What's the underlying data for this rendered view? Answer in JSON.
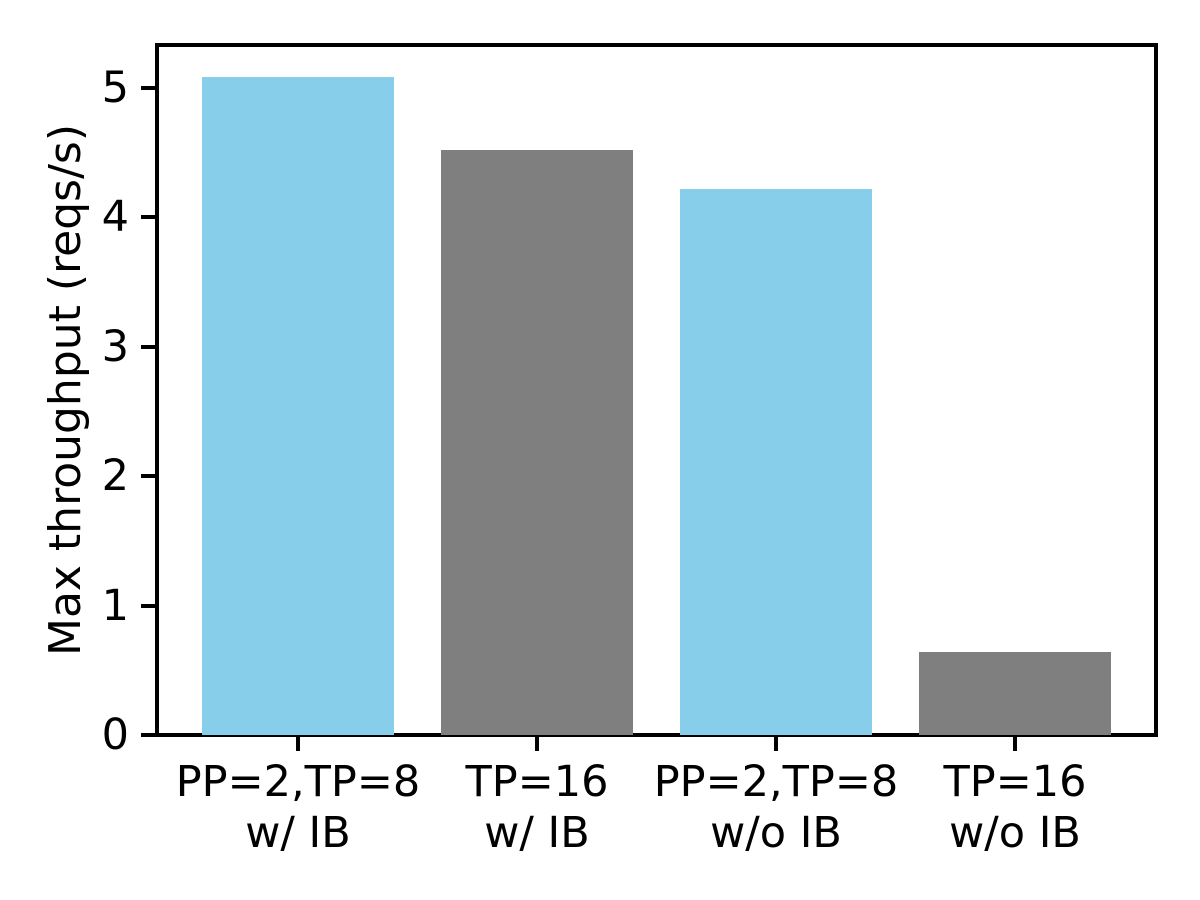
{
  "chart_data": {
    "type": "bar",
    "title": "",
    "xlabel": "",
    "ylabel": "Max throughput (reqs/s)",
    "categories": [
      "PP=2,TP=8\nw/ IB",
      "TP=16\nw/ IB",
      "PP=2,TP=8\nw/o IB",
      "TP=16\nw/o IB"
    ],
    "values": [
      5.08,
      4.52,
      4.22,
      0.64
    ],
    "bar_colors": [
      "#87CEEB",
      "#7F7F7F",
      "#87CEEB",
      "#7F7F7F"
    ],
    "yticks": [
      0,
      1,
      2,
      3,
      4,
      5
    ],
    "ylim": [
      0,
      5.33
    ],
    "xlim": [
      -0.59,
      3.59
    ],
    "bar_width_units": 0.8,
    "grid": false,
    "legend": null
  },
  "colors": {
    "bar_blue": "#87CEEB",
    "bar_gray": "#7F7F7F",
    "axis": "#000000",
    "background": "#FFFFFF"
  }
}
